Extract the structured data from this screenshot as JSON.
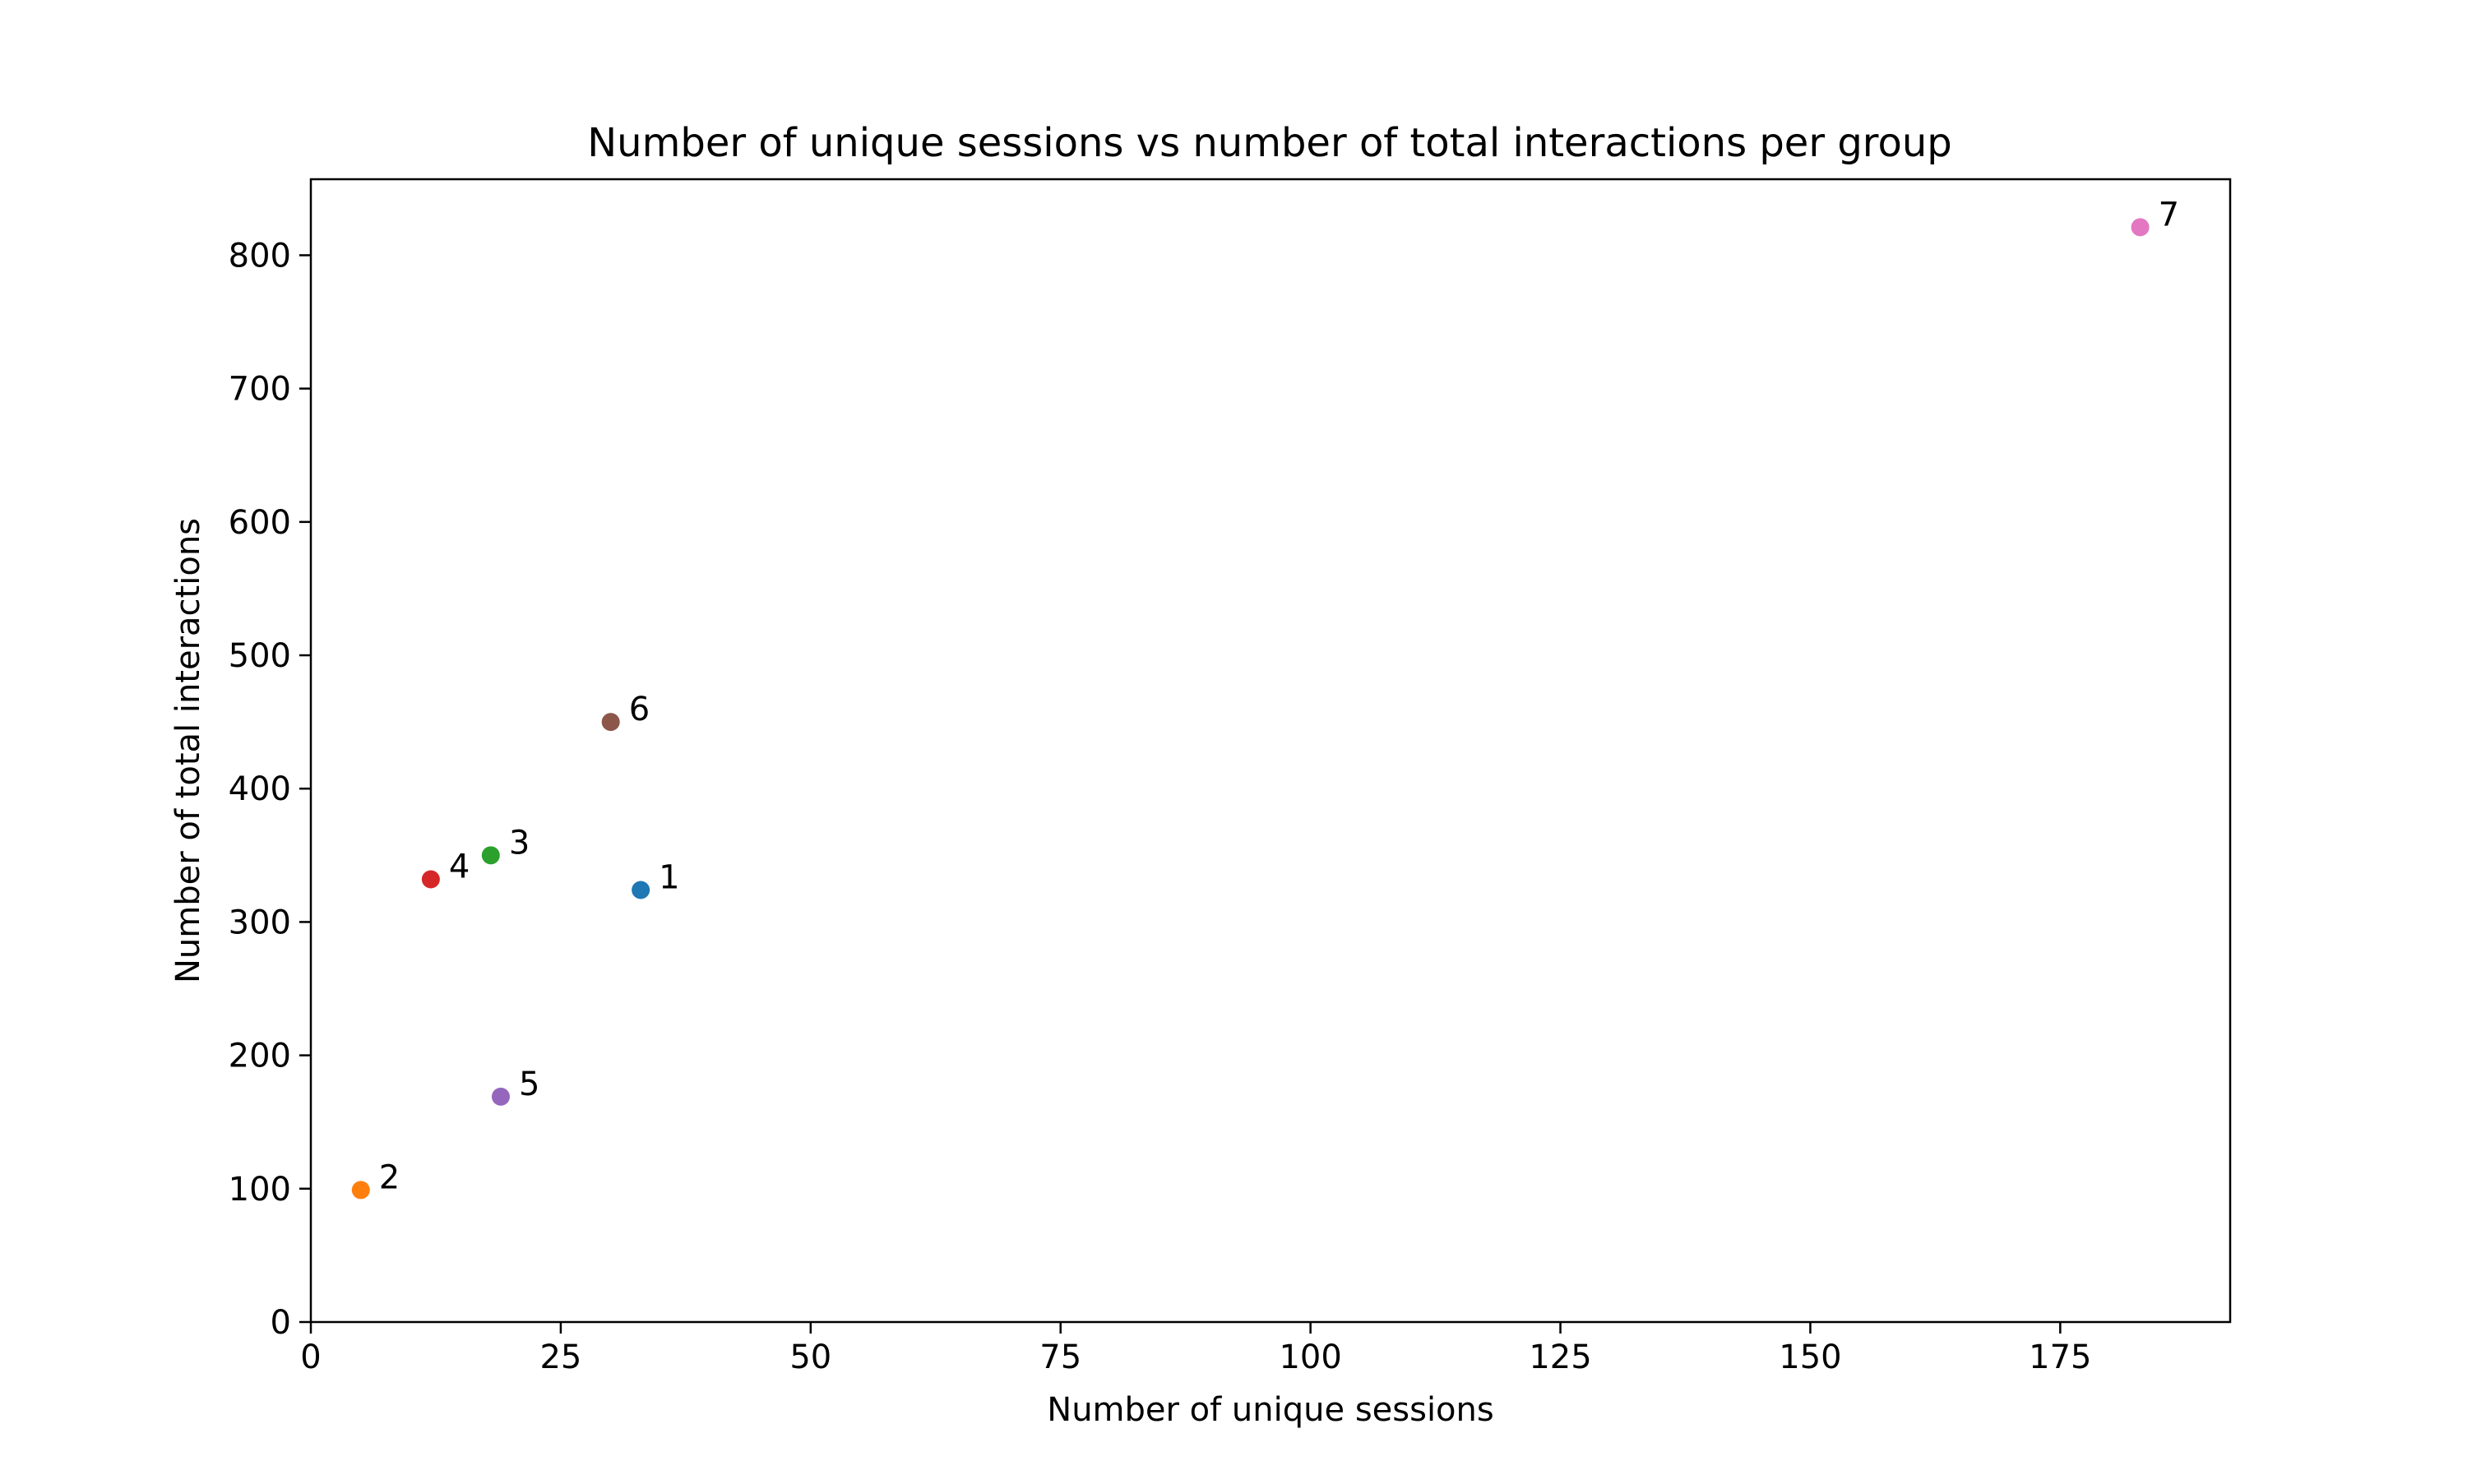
{
  "chart_data": {
    "type": "scatter",
    "title": "Number of unique sessions vs number of total interactions per group",
    "xlabel": "Number of unique sessions",
    "ylabel": "Number of total interactions",
    "xlim": [
      0,
      192
    ],
    "ylim": [
      0,
      857
    ],
    "xticks": [
      0,
      25,
      50,
      75,
      100,
      125,
      150,
      175
    ],
    "yticks": [
      0,
      100,
      200,
      300,
      400,
      500,
      600,
      700,
      800
    ],
    "grid": false,
    "points": [
      {
        "label": "1",
        "x": 33,
        "y": 324,
        "color": "#1f77b4"
      },
      {
        "label": "2",
        "x": 5,
        "y": 99,
        "color": "#ff7f0e"
      },
      {
        "label": "3",
        "x": 18,
        "y": 350,
        "color": "#2ca02c"
      },
      {
        "label": "4",
        "x": 12,
        "y": 332,
        "color": "#d62728"
      },
      {
        "label": "5",
        "x": 19,
        "y": 169,
        "color": "#9467bd"
      },
      {
        "label": "6",
        "x": 30,
        "y": 450,
        "color": "#8c564b"
      },
      {
        "label": "7",
        "x": 183,
        "y": 821,
        "color": "#e377c2"
      }
    ]
  }
}
